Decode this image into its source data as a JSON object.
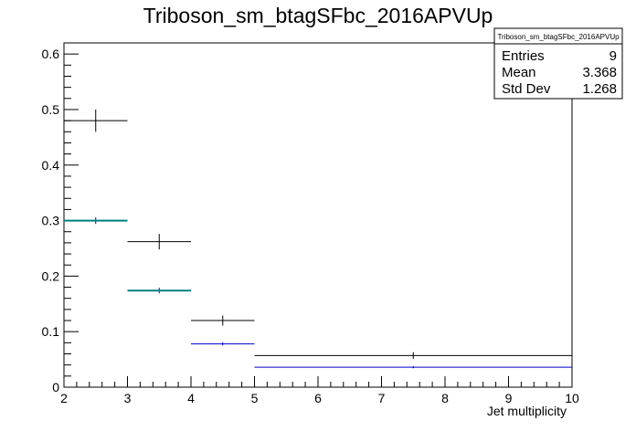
{
  "chart_data": {
    "type": "histogram",
    "title": "Triboson_sm_btagSFbc_2016APVUp",
    "xlabel": "Jet multiplicity",
    "ylabel": "",
    "xlim": [
      2,
      10
    ],
    "ylim": [
      0,
      0.62
    ],
    "x_ticks": [
      2,
      3,
      4,
      5,
      6,
      7,
      8,
      9,
      10
    ],
    "y_ticks": [
      0,
      0.1,
      0.2,
      0.3,
      0.4,
      0.5,
      0.6
    ],
    "y_tick_labels": [
      "0",
      "0.1",
      "0.2",
      "0.3",
      "0.4",
      "0.5",
      "0.6"
    ],
    "grid": false,
    "stats_box": {
      "title": "Triboson_sm_btagSFbc_2016APVUp",
      "rows": [
        {
          "label": "Entries",
          "value": "9"
        },
        {
          "label": "Mean",
          "value": "3.368"
        },
        {
          "label": "Std Dev",
          "value": "1.268"
        }
      ],
      "placement": "top-right"
    },
    "series": [
      {
        "color": "#000000",
        "points": [
          {
            "xlow": 2,
            "xhigh": 3,
            "x": 2.5,
            "y": 0.48,
            "err": 0.02
          },
          {
            "xlow": 3,
            "xhigh": 4,
            "x": 3.5,
            "y": 0.262,
            "err": 0.014
          },
          {
            "xlow": 4,
            "xhigh": 5,
            "x": 4.5,
            "y": 0.12,
            "err": 0.009
          },
          {
            "xlow": 5,
            "xhigh": 10,
            "x": 7.5,
            "y": 0.057,
            "err": 0.006
          }
        ]
      },
      {
        "color": "#0000cc",
        "points": [
          {
            "xlow": 2,
            "xhigh": 3,
            "x": 2.5,
            "y": 0.3,
            "err": 0.006
          },
          {
            "xlow": 3,
            "xhigh": 4,
            "x": 3.5,
            "y": 0.174,
            "err": 0.005
          },
          {
            "xlow": 4,
            "xhigh": 5,
            "x": 4.5,
            "y": 0.078,
            "err": 0.003
          },
          {
            "xlow": 5,
            "xhigh": 10,
            "x": 7.5,
            "y": 0.036,
            "err": 0.002
          }
        ]
      },
      {
        "color": "#008080",
        "points": [
          {
            "xlow": 2,
            "xhigh": 3,
            "x": 2.5,
            "y": 0.3,
            "err": 0.0
          },
          {
            "xlow": 3,
            "xhigh": 4,
            "x": 3.5,
            "y": 0.174,
            "err": 0.0
          }
        ]
      }
    ]
  }
}
